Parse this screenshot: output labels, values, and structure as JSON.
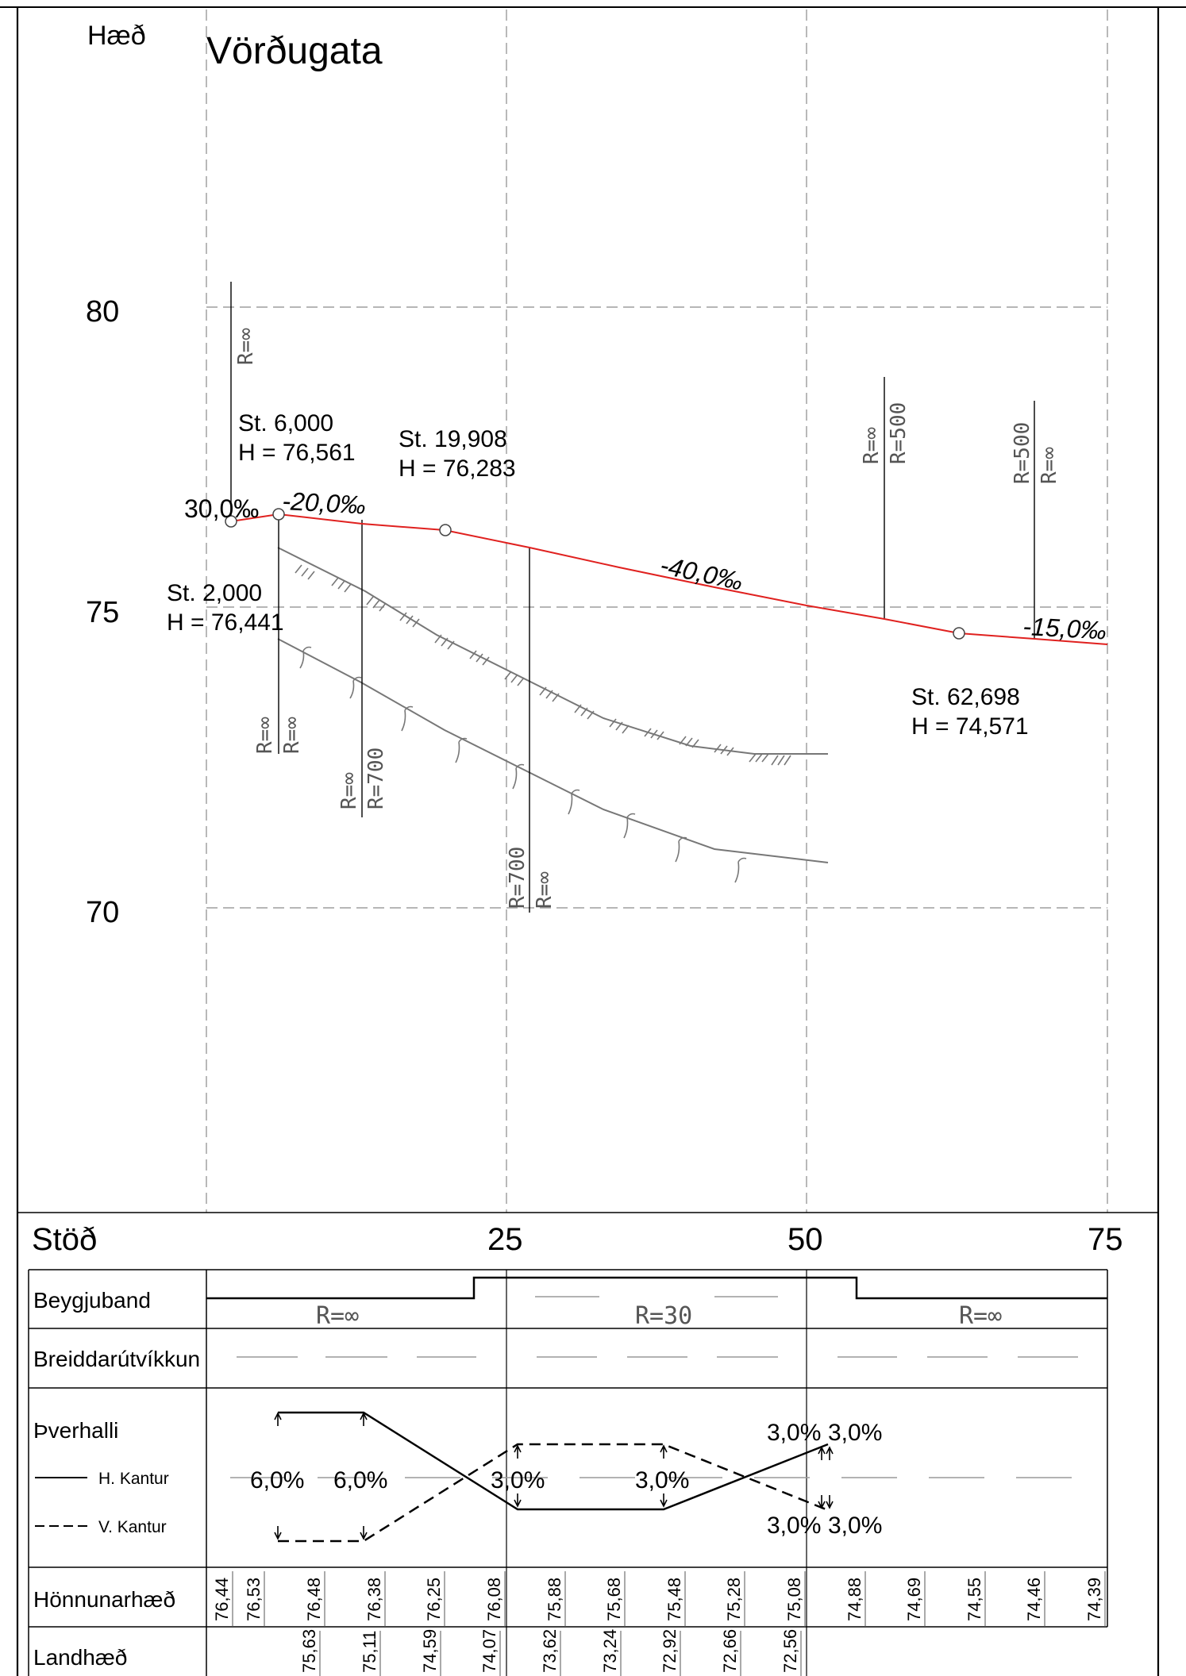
{
  "title": "Vörðugata",
  "axis": {
    "y_label": "Hæð",
    "y_ticks": [
      "80",
      "75",
      "70"
    ],
    "x_label": "Stöð",
    "x_ticks": [
      "25",
      "50",
      "75"
    ]
  },
  "annotations": {
    "st2": [
      "St. 2,000",
      "H = 76,441"
    ],
    "st6": [
      "St. 6,000",
      "H = 76,561"
    ],
    "st19": [
      "St. 19,908",
      "H = 76,283"
    ],
    "st62": [
      "St. 62,698",
      "H = 74,571"
    ],
    "grades": [
      "30,0‰",
      "-20,0‰",
      "-40,0‰",
      "-15,0‰"
    ],
    "curve_labels": {
      "r_inf": "R=∞",
      "r500": "R=500",
      "r700": "R=700"
    }
  },
  "bands": {
    "beygjuband": {
      "label": "Beygjuband",
      "segments": [
        "R=∞",
        "R=30",
        "R=∞"
      ]
    },
    "breidd": {
      "label": "Breiddarútvíkkun"
    },
    "thverhalli": {
      "label": "Þverhalli",
      "legend": [
        "H. Kantur",
        "V. Kantur"
      ],
      "values": [
        "6,0%",
        "6,0%",
        "3,0%",
        "3,0%",
        "3,0%",
        "3,0%",
        "3,0%",
        "3,0%"
      ]
    },
    "honnunarhaed": {
      "label": "Hönnunarhæð",
      "values": [
        "76,44",
        "76,53",
        "76,48",
        "76,38",
        "76,25",
        "76,08",
        "75,88",
        "75,68",
        "75,48",
        "75,28",
        "75,08",
        "74,88",
        "74,69",
        "74,55",
        "74,46",
        "74,39"
      ]
    },
    "landhaed": {
      "label": "Landhæð",
      "values": [
        "75,63",
        "75,11",
        "74,59",
        "74,07",
        "73,62",
        "73,24",
        "72,92",
        "72,66",
        "72,56"
      ]
    }
  },
  "colors": {
    "profile": "#e0211f",
    "terrain": "#777777",
    "grid": "#8a8a8a"
  }
}
